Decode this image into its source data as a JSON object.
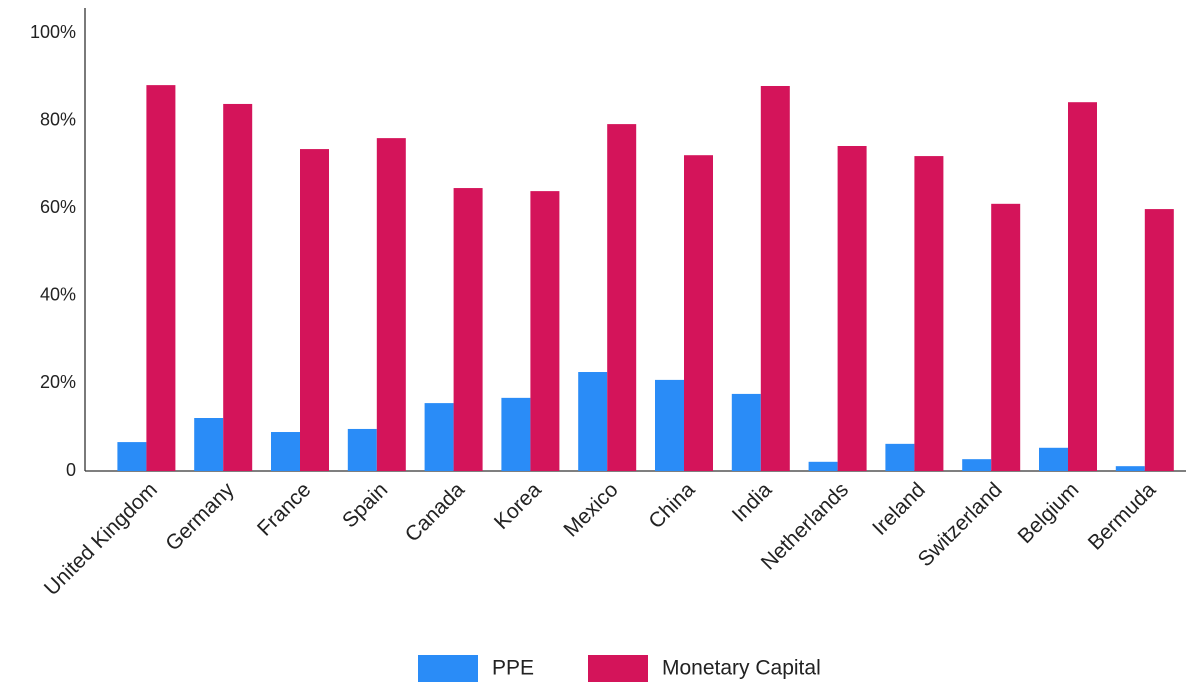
{
  "chart_data": {
    "type": "bar",
    "categories": [
      "United Kingdom",
      "Germany",
      "France",
      "Spain",
      "Canada",
      "Korea",
      "Mexico",
      "China",
      "India",
      "Netherlands",
      "Ireland",
      "Switzerland",
      "Belgium",
      "Bermuda"
    ],
    "series": [
      {
        "name": "PPE",
        "color": "#2a8cf7",
        "values": [
          6.6,
          12.1,
          8.9,
          9.6,
          15.5,
          16.7,
          22.6,
          20.8,
          17.6,
          2.1,
          6.2,
          2.7,
          5.3,
          1.1
        ]
      },
      {
        "name": "Monetary Capital",
        "color": "#d4145a",
        "values": [
          88.1,
          83.8,
          73.5,
          76.0,
          64.6,
          63.9,
          79.2,
          72.1,
          87.9,
          74.2,
          71.9,
          61.0,
          84.2,
          59.8
        ]
      }
    ],
    "ylim": [
      0,
      100
    ],
    "yticks": [
      0,
      {
        "value": 20,
        "label": "20%"
      },
      {
        "value": 40,
        "label": "40%"
      },
      {
        "value": 60,
        "label": "60%"
      },
      {
        "value": 80,
        "label": "80%"
      },
      {
        "value": 100,
        "label": "100%"
      }
    ],
    "grid": false,
    "legend": "bottom"
  }
}
